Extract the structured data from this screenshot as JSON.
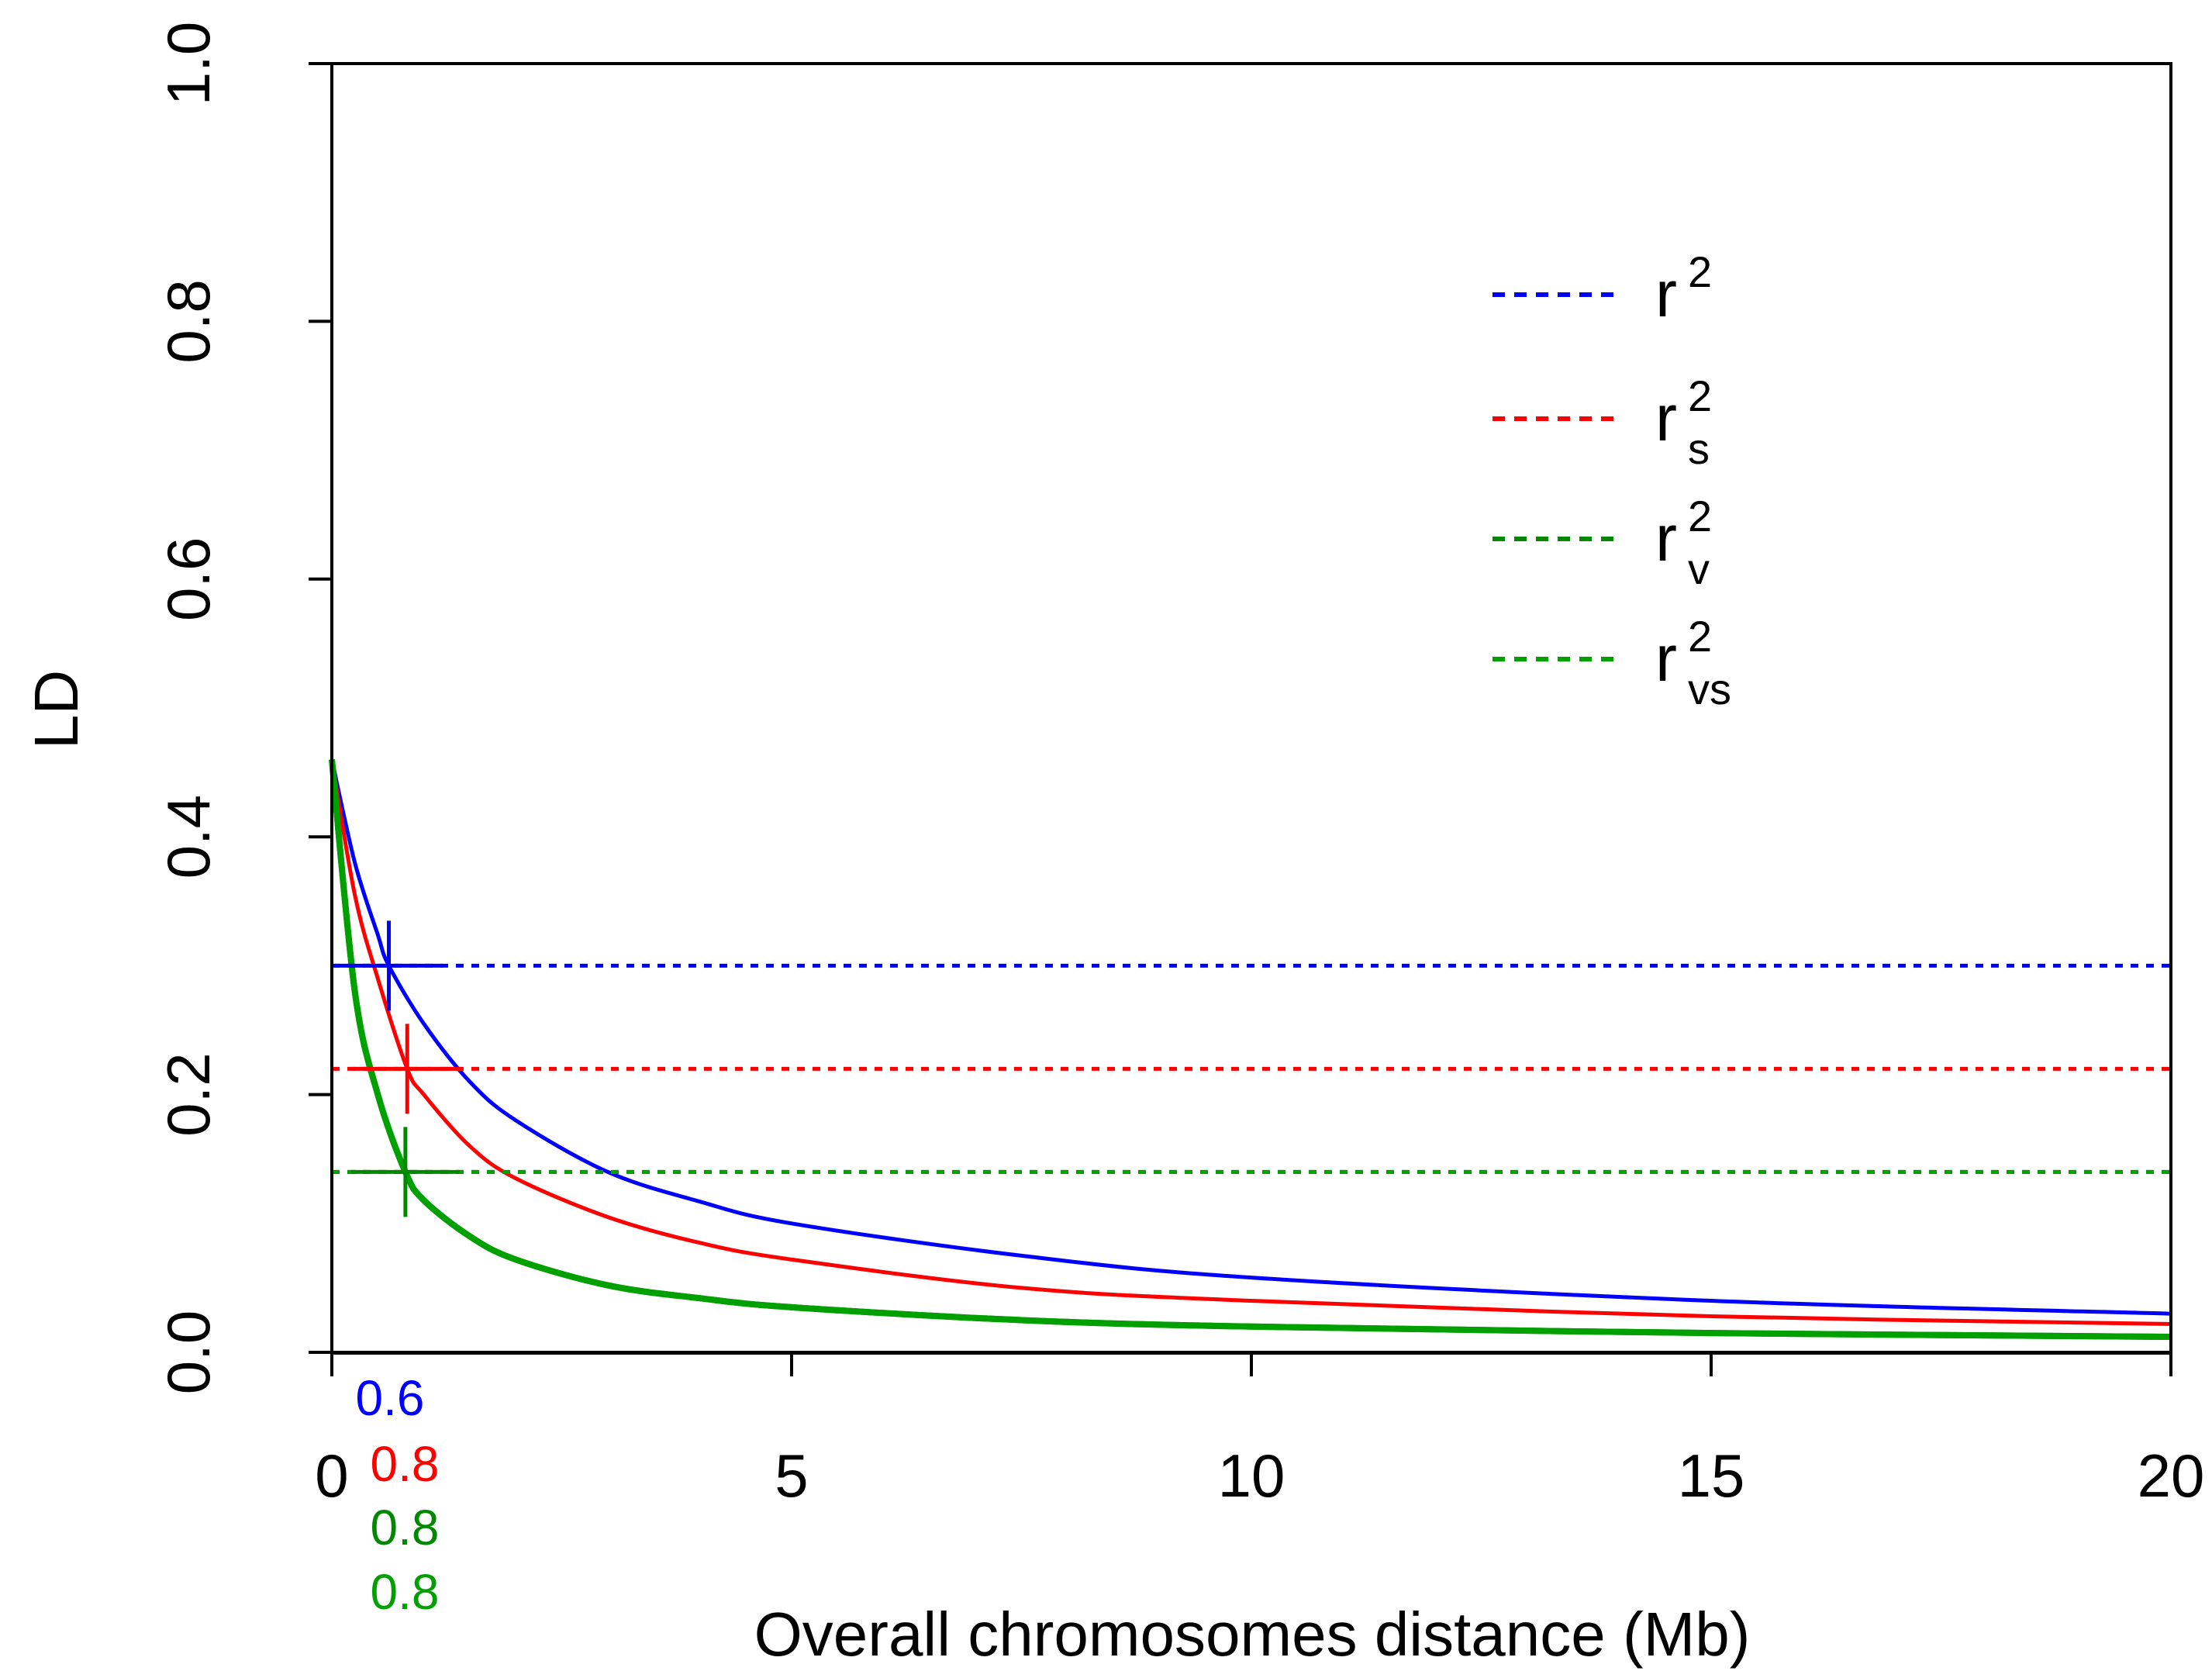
{
  "chart_data": {
    "type": "line",
    "title": "",
    "xlabel": "Overall chromosomes distance (Mb)",
    "ylabel": "LD",
    "xlim": [
      0,
      20
    ],
    "ylim": [
      0,
      1
    ],
    "xticks": [
      "0",
      "5",
      "10",
      "15",
      "20"
    ],
    "yticks": [
      "0.0",
      "0.2",
      "0.4",
      "0.6",
      "0.8",
      "1.0"
    ],
    "grid": false,
    "legend_position": "top-right",
    "series": [
      {
        "name": "r^2",
        "legend_base": "r",
        "legend_sup": "2",
        "legend_sub": "",
        "color": "#0000ff",
        "start": 0.46,
        "threshold": 0.3,
        "crossing_x": 0.62,
        "annotation": "0.6",
        "x": [
          0,
          0.25,
          0.5,
          0.62,
          1,
          1.5,
          2,
          3,
          4,
          5,
          7.5,
          10,
          15,
          20
        ],
        "y": [
          0.46,
          0.38,
          0.324,
          0.3,
          0.255,
          0.21,
          0.18,
          0.14,
          0.117,
          0.1,
          0.075,
          0.058,
          0.04,
          0.03
        ]
      },
      {
        "name": "r_s^2",
        "legend_base": "r",
        "legend_sup": "2",
        "legend_sub": "s",
        "color": "#ff0000",
        "start": 0.46,
        "threshold": 0.22,
        "crossing_x": 0.82,
        "annotation": "0.8",
        "x": [
          0,
          0.25,
          0.5,
          0.82,
          1,
          1.5,
          2,
          3,
          4,
          5,
          7.5,
          10,
          15,
          20
        ],
        "y": [
          0.46,
          0.355,
          0.29,
          0.22,
          0.2,
          0.16,
          0.135,
          0.105,
          0.085,
          0.072,
          0.05,
          0.04,
          0.028,
          0.022
        ]
      },
      {
        "name": "r_v^2",
        "legend_base": "r",
        "legend_sup": "2",
        "legend_sub": "v",
        "color": "#008800",
        "start": 0.46,
        "threshold": 0.14,
        "crossing_x": 0.8,
        "annotation": "0.8",
        "x": [
          0,
          0.25,
          0.5,
          0.8,
          1,
          1.5,
          2,
          3,
          4,
          5,
          7.5,
          10,
          15,
          20
        ],
        "y": [
          0.46,
          0.28,
          0.2,
          0.14,
          0.118,
          0.09,
          0.072,
          0.052,
          0.042,
          0.035,
          0.025,
          0.02,
          0.015,
          0.012
        ]
      },
      {
        "name": "r_vs^2",
        "legend_base": "r",
        "legend_sup": "2",
        "legend_sub": "vs",
        "color": "#00a000",
        "start": 0.46,
        "threshold": 0.14,
        "crossing_x": 0.8,
        "annotation": "0.8",
        "x": [
          0,
          0.25,
          0.5,
          0.8,
          1,
          1.5,
          2,
          3,
          4,
          5,
          7.5,
          10,
          15,
          20
        ],
        "y": [
          0.46,
          0.28,
          0.2,
          0.14,
          0.118,
          0.09,
          0.072,
          0.052,
          0.042,
          0.035,
          0.025,
          0.02,
          0.015,
          0.012
        ]
      }
    ]
  }
}
